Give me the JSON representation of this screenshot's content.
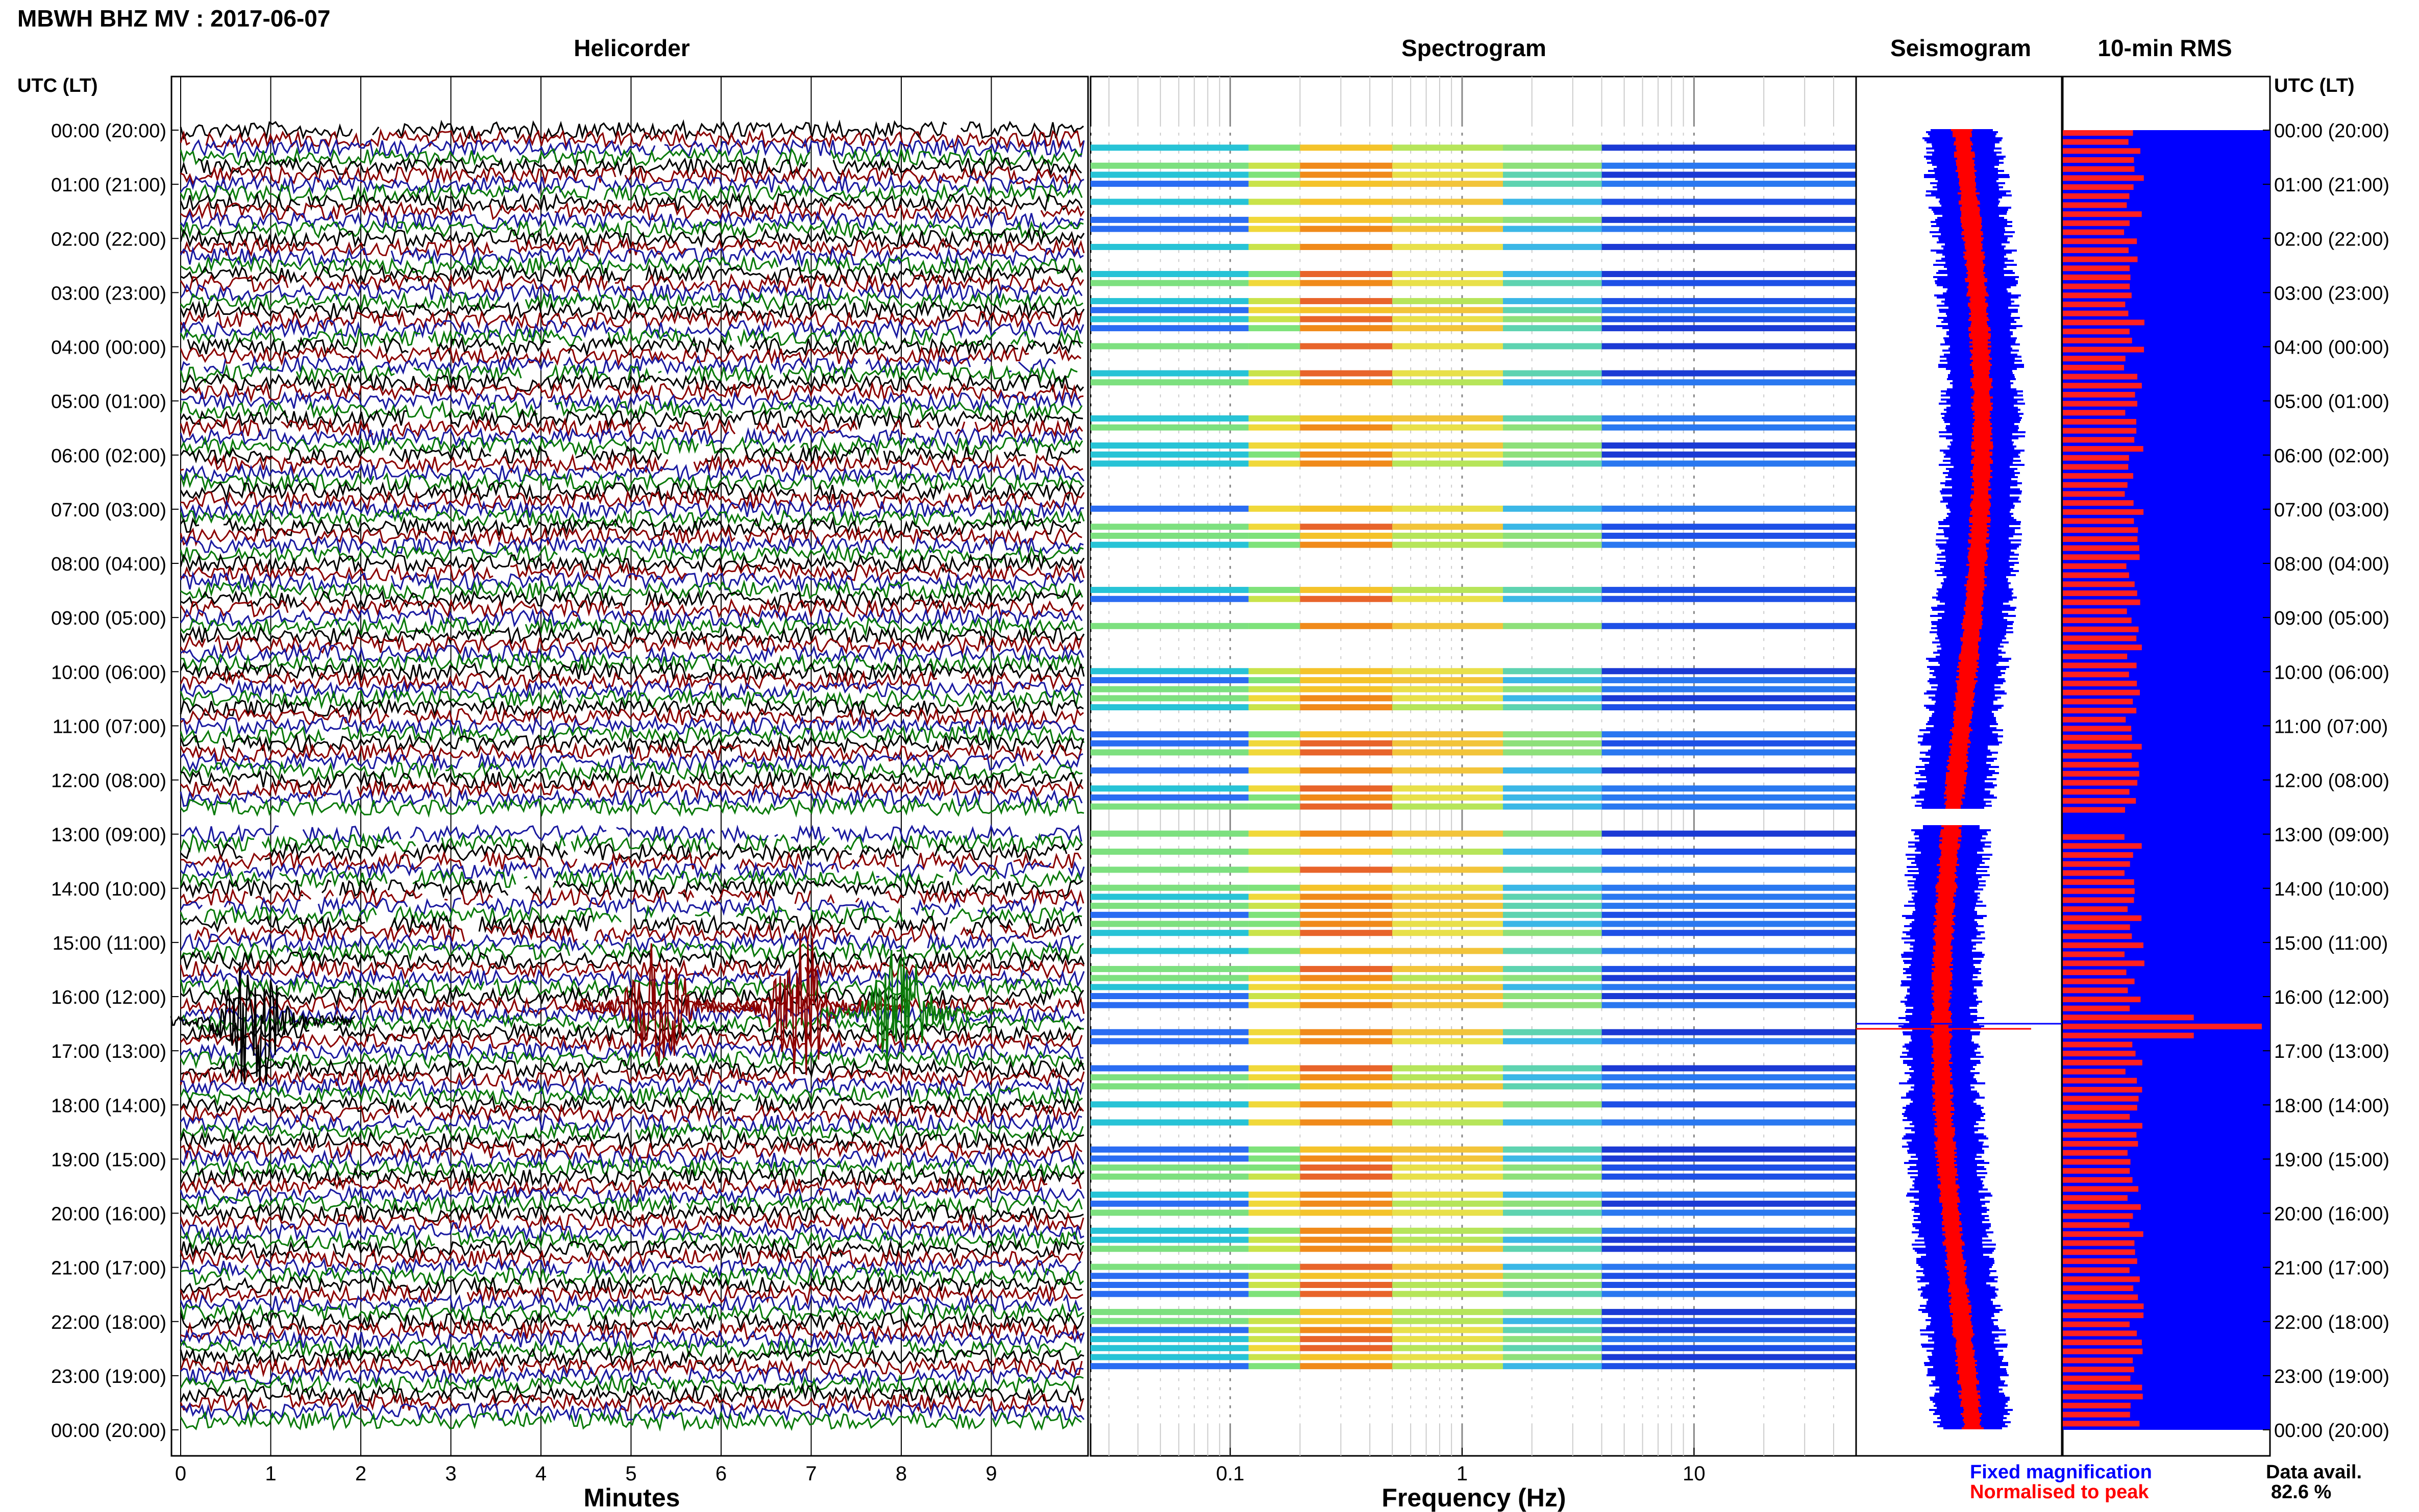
{
  "header": {
    "title": "MBWH BHZ MV : 2017-06-07"
  },
  "panels": {
    "helicorder": "Helicorder",
    "spectrogram": "Spectrogram",
    "seismogram": "Seismogram",
    "rms": "10-min RMS"
  },
  "time_axis": {
    "label": "UTC (LT)",
    "ticks": [
      "00:00 (20:00)",
      "01:00 (21:00)",
      "02:00 (22:00)",
      "03:00 (23:00)",
      "04:00 (00:00)",
      "05:00 (01:00)",
      "06:00 (02:00)",
      "07:00 (03:00)",
      "08:00 (04:00)",
      "09:00 (05:00)",
      "10:00 (06:00)",
      "11:00 (07:00)",
      "12:00 (08:00)",
      "13:00 (09:00)",
      "14:00 (10:00)",
      "15:00 (11:00)",
      "16:00 (12:00)",
      "17:00 (13:00)",
      "18:00 (14:00)",
      "19:00 (15:00)",
      "20:00 (16:00)",
      "21:00 (17:00)",
      "22:00 (18:00)",
      "23:00 (19:00)",
      "00:00 (20:00)"
    ]
  },
  "minutes_axis": {
    "label": "Minutes",
    "ticks": [
      "0",
      "1",
      "2",
      "3",
      "4",
      "5",
      "6",
      "7",
      "8",
      "9"
    ]
  },
  "frequency_axis": {
    "label": "Frequency (Hz)",
    "ticks": [
      "0.1",
      "1",
      "10"
    ],
    "scale": "log"
  },
  "legend": {
    "fixed": "Fixed magnification",
    "normalised": "Normalised to peak",
    "fixed_color": "#0000ff",
    "normalised_color": "#ff0000"
  },
  "data_avail": {
    "label": "Data avail.",
    "value": "82.6 %"
  },
  "colors": {
    "helicorder_lines": [
      "#000000",
      "#8b0000",
      "#1a1aa0",
      "#0a7a0a"
    ]
  },
  "chart_data": {
    "type": "heatmap",
    "title": "MBWH BHZ MV : 2017-06-07",
    "data_availability_percent": 82.6,
    "gap_hours": [
      12.55,
      12.85
    ],
    "events": [
      {
        "utc_hour": 16.45,
        "minute": 0.8,
        "color": "black"
      },
      {
        "utc_hour": 16.2,
        "minute": 5.3,
        "color": "darkred"
      },
      {
        "utc_hour": 16.2,
        "minute": 6.9,
        "color": "darkred"
      },
      {
        "utc_hour": 16.3,
        "minute": 8.0,
        "color": "green"
      }
    ],
    "rms_spike_hour": 16.5,
    "spectrogram_peak_band_hz": [
      0.2,
      0.5
    ]
  }
}
